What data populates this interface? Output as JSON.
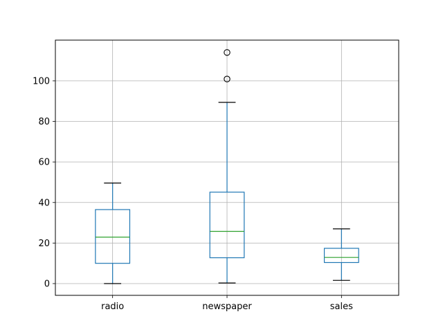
{
  "chart_data": {
    "type": "boxplot",
    "title": "",
    "xlabel": "",
    "ylabel": "",
    "ylim": [
      -5.8,
      120.1
    ],
    "yticks": [
      0,
      20,
      40,
      60,
      80,
      100
    ],
    "grid": true,
    "categories": [
      "radio",
      "newspaper",
      "sales"
    ],
    "boxes": [
      {
        "label": "radio",
        "whisker_low": 0.0,
        "q1": 10.0,
        "median": 22.9,
        "q3": 36.5,
        "whisker_high": 49.6,
        "outliers": []
      },
      {
        "label": "newspaper",
        "whisker_low": 0.3,
        "q1": 12.75,
        "median": 25.75,
        "q3": 45.1,
        "whisker_high": 89.4,
        "outliers": [
          100.9,
          114.0
        ]
      },
      {
        "label": "sales",
        "whisker_low": 1.6,
        "q1": 10.4,
        "median": 12.9,
        "q3": 17.4,
        "whisker_high": 27.0,
        "outliers": []
      }
    ],
    "colors": {
      "box": "#1f77b4",
      "median": "#2ca02c",
      "whisker_cap": "#000000",
      "grid": "#b0b0b0",
      "outlier": "#000000"
    }
  }
}
